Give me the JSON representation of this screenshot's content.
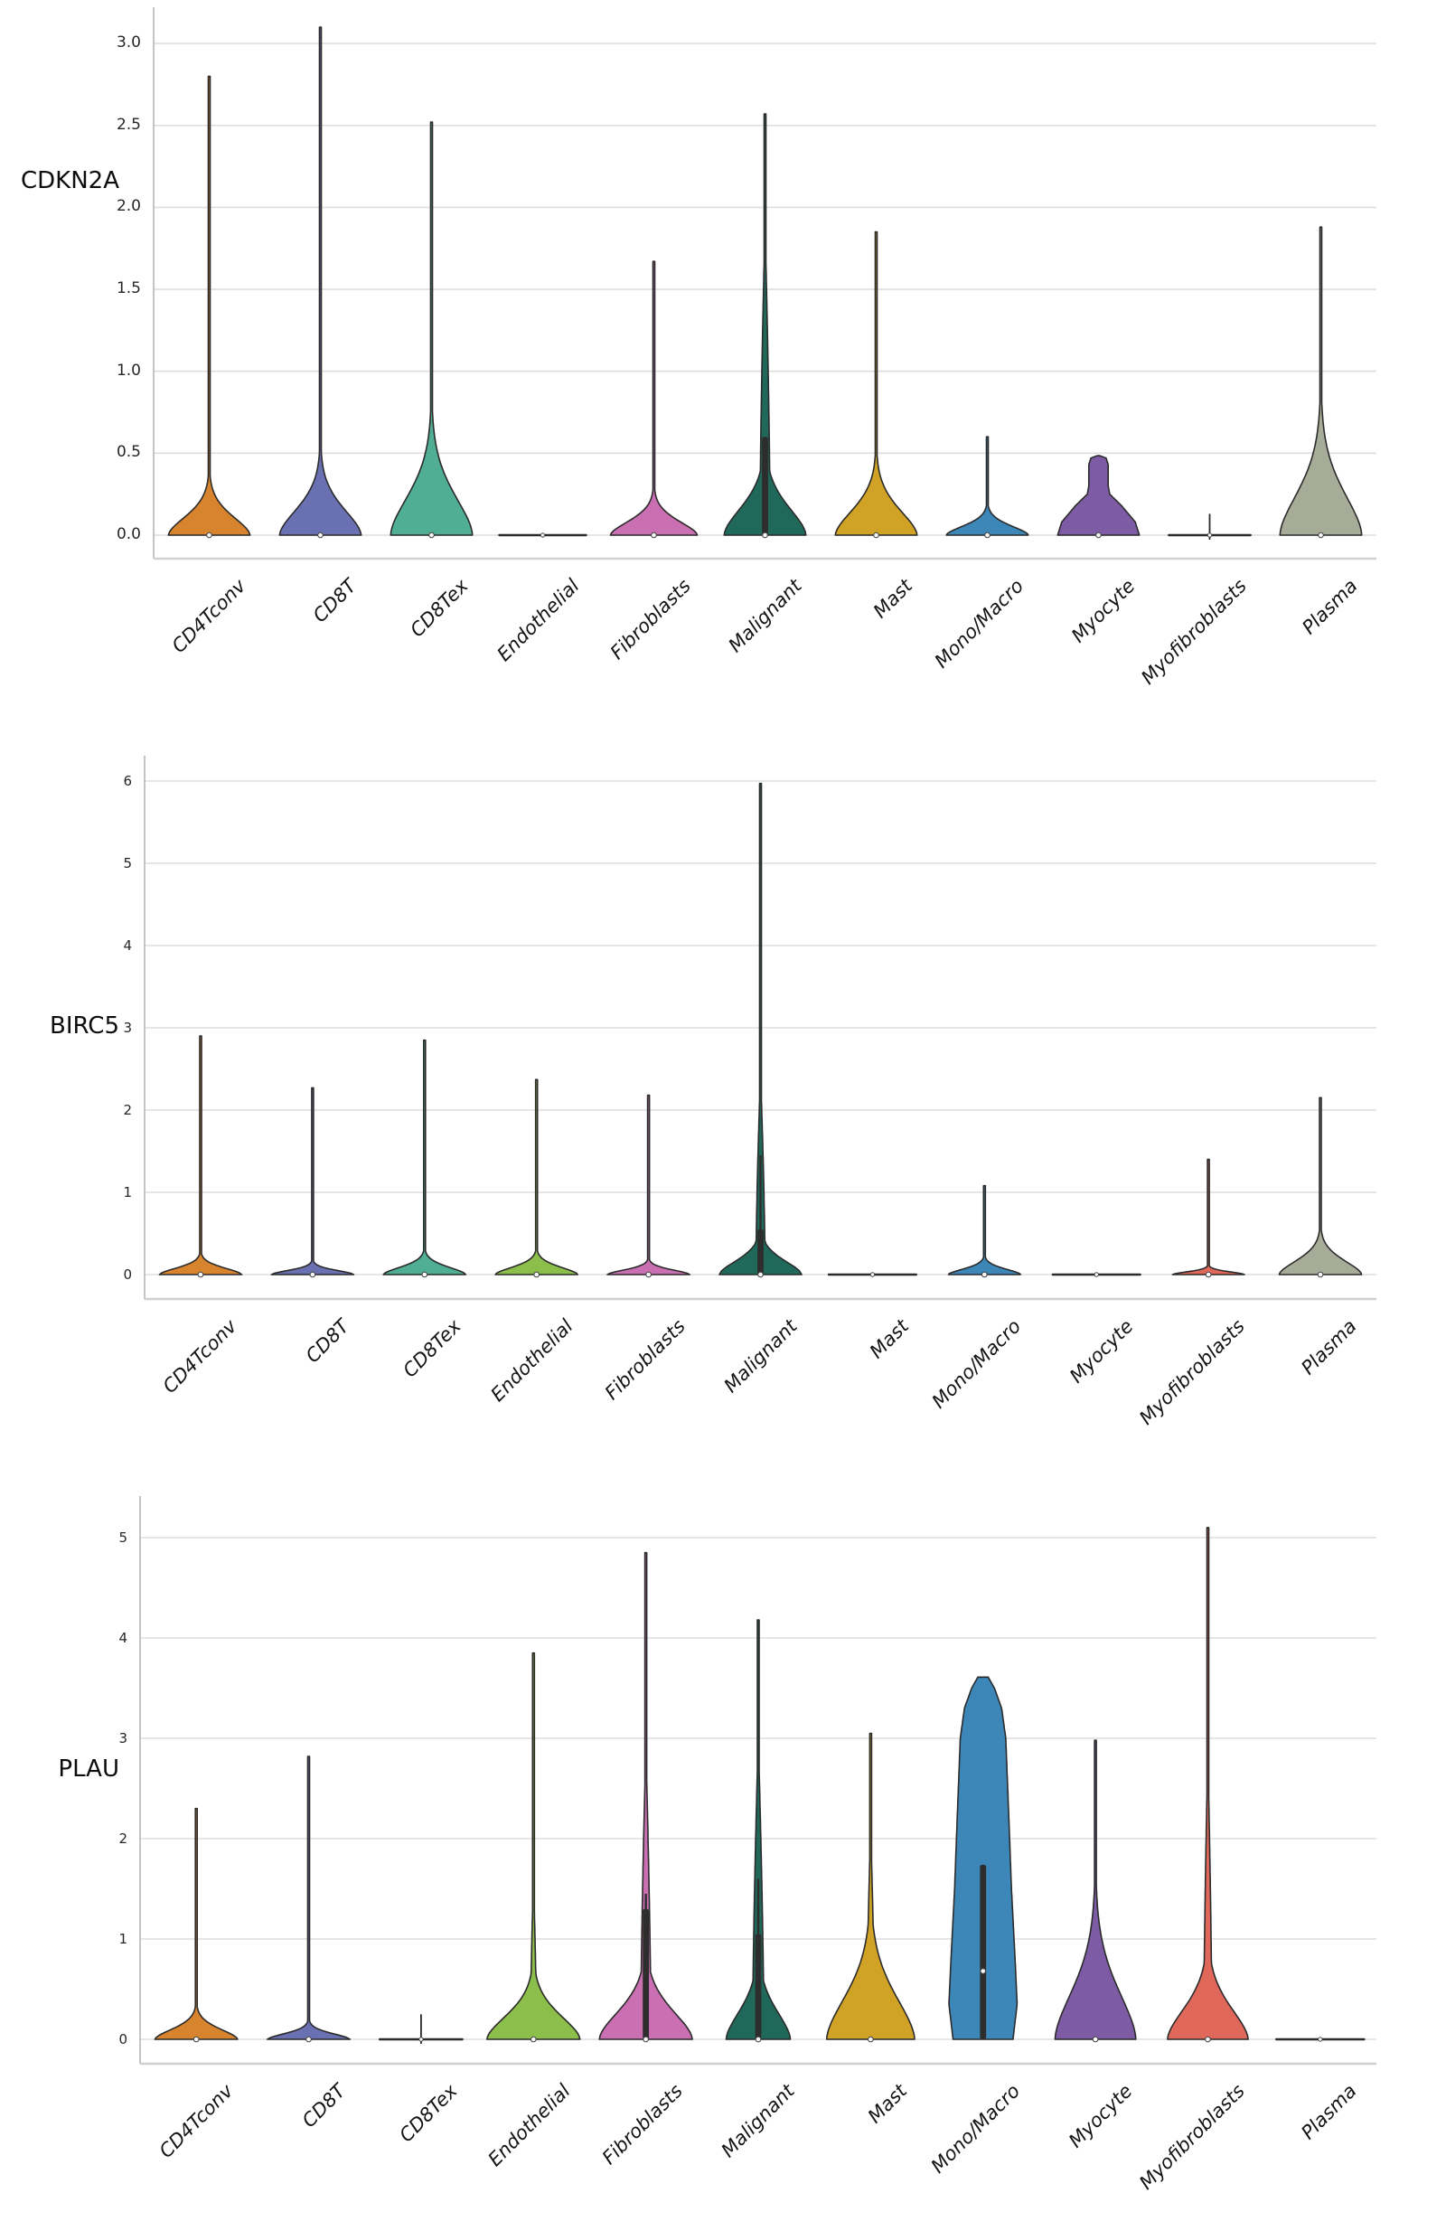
{
  "figure_title": "",
  "chart_data": [
    {
      "gene": "CDKN2A",
      "type": "violin",
      "ylim": [
        -0.15,
        3.22
      ],
      "grid": true,
      "yticks": [
        0.0,
        0.5,
        1.0,
        1.5,
        2.0,
        2.5,
        3.0
      ],
      "ytick_labels": [
        "0.0",
        "0.5",
        "1.0",
        "1.5",
        "2.0",
        "2.5",
        "3.0"
      ],
      "categories": [
        "CD4Tconv",
        "CD8T",
        "CD8Tex",
        "Endothelial",
        "Fibroblasts",
        "Malignant",
        "Mast",
        "Mono/Macro",
        "Myocyte",
        "Myofibroblasts",
        "Plasma"
      ],
      "violins": [
        {
          "category": "CD4Tconv",
          "color": "#D8842F",
          "shape": "bell",
          "hw": 0.8,
          "body": 0.2,
          "max": 2.8,
          "median": 0
        },
        {
          "category": "CD8T",
          "color": "#6A71B2",
          "shape": "bell",
          "hw": 0.8,
          "body": 0.28,
          "max": 3.1,
          "median": 0
        },
        {
          "category": "CD8Tex",
          "color": "#4FAE94",
          "shape": "bell",
          "hw": 0.8,
          "body": 0.42,
          "max": 2.52,
          "median": 0
        },
        {
          "category": "Endothelial",
          "color": "#8CBE4B",
          "shape": "flat",
          "hw": 0.85,
          "max": 0.02,
          "median": 0
        },
        {
          "category": "Fibroblasts",
          "color": "#C96FB2",
          "shape": "bell",
          "hw": 0.85,
          "body": 0.15,
          "max": 1.67,
          "median": 0
        },
        {
          "category": "Malignant",
          "color": "#20695A",
          "shape": "bell",
          "hw": 0.8,
          "body": 0.3,
          "neck_h": 1.9,
          "neck_w": 0.1,
          "max": 2.57,
          "box": [
            0,
            0.6
          ],
          "median": 0
        },
        {
          "category": "Mast",
          "color": "#D0A326",
          "shape": "bell",
          "hw": 0.8,
          "body": 0.27,
          "max": 1.85,
          "median": 0
        },
        {
          "category": "Mono/Macro",
          "color": "#3D87B8",
          "shape": "bell",
          "hw": 0.8,
          "body": 0.1,
          "max": 0.6,
          "median": 0
        },
        {
          "category": "Myocyte",
          "color": "#7D5CA5",
          "shape": "profile",
          "profile": [
            [
              0,
              0.8
            ],
            [
              0.08,
              0.72
            ],
            [
              0.18,
              0.45
            ],
            [
              0.25,
              0.22
            ],
            [
              0.3,
              0.19
            ],
            [
              0.43,
              0.19
            ],
            [
              0.47,
              0.15
            ],
            [
              0.485,
              0.02
            ]
          ],
          "max": 0.485,
          "median": 0
        },
        {
          "category": "Myofibroblasts",
          "color": "#E0685B",
          "shape": "flat",
          "hw": 0.8,
          "max": 0.13,
          "median": 0
        },
        {
          "category": "Plasma",
          "color": "#A7AC98",
          "shape": "bell",
          "hw": 0.8,
          "body": 0.45,
          "max": 1.88,
          "median": 0
        }
      ]
    },
    {
      "gene": "BIRC5",
      "type": "violin",
      "ylim": [
        -0.3,
        6.3
      ],
      "grid": true,
      "yticks": [
        0,
        1,
        2,
        3,
        4,
        5,
        6
      ],
      "ytick_labels": [
        "0",
        "1",
        "2",
        "3",
        "4",
        "5",
        "6"
      ],
      "categories": [
        "CD4Tconv",
        "CD8T",
        "CD8Tex",
        "Endothelial",
        "Fibroblasts",
        "Malignant",
        "Mast",
        "Mono/Macro",
        "Myocyte",
        "Myofibroblasts",
        "Plasma"
      ],
      "violins": [
        {
          "category": "CD4Tconv",
          "color": "#D8842F",
          "shape": "bell",
          "hw": 0.8,
          "body": 0.14,
          "max": 2.9,
          "median": 0
        },
        {
          "category": "CD8T",
          "color": "#6A71B2",
          "shape": "bell",
          "hw": 0.8,
          "body": 0.09,
          "max": 2.27,
          "median": 0
        },
        {
          "category": "CD8Tex",
          "color": "#4FAE94",
          "shape": "bell",
          "hw": 0.8,
          "body": 0.16,
          "max": 2.85,
          "median": 0
        },
        {
          "category": "Endothelial",
          "color": "#8CBE4B",
          "shape": "bell",
          "hw": 0.8,
          "body": 0.16,
          "max": 2.37,
          "median": 0
        },
        {
          "category": "Fibroblasts",
          "color": "#C96FB2",
          "shape": "bell",
          "hw": 0.8,
          "body": 0.1,
          "max": 2.18,
          "median": 0
        },
        {
          "category": "Malignant",
          "color": "#20695A",
          "shape": "bell",
          "hw": 0.8,
          "body": 0.3,
          "neck_h": 2.45,
          "neck_w": 0.09,
          "max": 5.97,
          "box": [
            0,
            0.55
          ],
          "whisker": 1.45,
          "median": 0
        },
        {
          "category": "Mast",
          "color": "#D0A326",
          "shape": "flat",
          "hw": 0.85,
          "max": 0.03,
          "median": 0
        },
        {
          "category": "Mono/Macro",
          "color": "#3D87B8",
          "shape": "bell",
          "hw": 0.7,
          "body": 0.12,
          "max": 1.08,
          "median": 0
        },
        {
          "category": "Myocyte",
          "color": "#7D5CA5",
          "shape": "flat",
          "hw": 0.85,
          "max": 0.03,
          "median": 0
        },
        {
          "category": "Myofibroblasts",
          "color": "#E0685B",
          "shape": "bell",
          "hw": 0.7,
          "body": 0.06,
          "max": 1.4,
          "median": 0
        },
        {
          "category": "Plasma",
          "color": "#A7AC98",
          "shape": "bell",
          "hw": 0.8,
          "body": 0.3,
          "max": 2.15,
          "median": 0
        }
      ]
    },
    {
      "gene": "PLAU",
      "type": "violin",
      "ylim": [
        -0.24,
        5.42
      ],
      "grid": true,
      "yticks": [
        0,
        1,
        2,
        3,
        4,
        5
      ],
      "ytick_labels": [
        "0",
        "1",
        "2",
        "3",
        "4",
        "5"
      ],
      "categories": [
        "CD4Tconv",
        "CD8T",
        "CD8Tex",
        "Endothelial",
        "Fibroblasts",
        "Malignant",
        "Mast",
        "Mono/Macro",
        "Myocyte",
        "Myofibroblasts",
        "Plasma"
      ],
      "violins": [
        {
          "category": "CD4Tconv",
          "color": "#D8842F",
          "shape": "bell",
          "hw": 0.8,
          "body": 0.18,
          "max": 2.3,
          "median": 0
        },
        {
          "category": "CD8T",
          "color": "#6A71B2",
          "shape": "bell",
          "hw": 0.8,
          "body": 0.1,
          "max": 2.82,
          "median": 0
        },
        {
          "category": "CD8Tex",
          "color": "#4FAE94",
          "shape": "flat",
          "hw": 0.8,
          "max": 0.25,
          "median": 0
        },
        {
          "category": "Endothelial",
          "color": "#8CBE4B",
          "shape": "bell",
          "hw": 0.9,
          "body": 0.42,
          "neck_h": 1.6,
          "neck_w": 0.06,
          "max": 3.85,
          "median": 0
        },
        {
          "category": "Fibroblasts",
          "color": "#C96FB2",
          "shape": "bell",
          "hw": 0.9,
          "body": 0.5,
          "neck_h": 2.9,
          "neck_w": 0.1,
          "max": 4.85,
          "box": [
            0,
            1.3
          ],
          "whisker": 1.45,
          "median": 0
        },
        {
          "category": "Malignant",
          "color": "#20695A",
          "shape": "bell",
          "hw": 0.62,
          "body": 0.5,
          "neck_h": 3.0,
          "neck_w": 0.11,
          "max": 4.18,
          "box": [
            0,
            1.05
          ],
          "whisker": 1.6,
          "median": 0
        },
        {
          "category": "Mast",
          "color": "#D0A326",
          "shape": "bell",
          "hw": 0.85,
          "body": 0.75,
          "neck_h": 2.1,
          "neck_w": 0.08,
          "max": 3.05,
          "median": 0
        },
        {
          "category": "Mono/Macro",
          "color": "#3D87B8",
          "shape": "profile",
          "profile": [
            [
              0,
              0.58
            ],
            [
              0.35,
              0.66
            ],
            [
              0.8,
              0.62
            ],
            [
              1.5,
              0.55
            ],
            [
              2.2,
              0.5
            ],
            [
              3.0,
              0.44
            ],
            [
              3.3,
              0.36
            ],
            [
              3.5,
              0.22
            ],
            [
              3.61,
              0.1
            ],
            [
              3.64,
              0.02
            ]
          ],
          "max": 3.61,
          "box": [
            0,
            1.74
          ],
          "median": 0.68
        },
        {
          "category": "Myocyte",
          "color": "#7D5CA5",
          "shape": "bell",
          "hw": 0.78,
          "body": 0.85,
          "neck_h": 1.5,
          "neck_w": 0.07,
          "max": 2.98,
          "median": 0
        },
        {
          "category": "Myofibroblasts",
          "color": "#E0685B",
          "shape": "bell",
          "hw": 0.78,
          "body": 0.55,
          "neck_h": 2.85,
          "neck_w": 0.08,
          "max": 5.1,
          "median": 0
        },
        {
          "category": "Plasma",
          "color": "#A7AC98",
          "shape": "flat",
          "hw": 0.85,
          "max": 0.02,
          "median": 0
        }
      ]
    }
  ],
  "style_colors": {
    "gridline": "#dedede",
    "left_spine": "#b5b5b5",
    "bottom_spine": "#d0d0d0",
    "violin_outline": "#2b2b2b",
    "box_fill": "#2d2d2d",
    "median_dot": "#f8f8f8",
    "tick_text": "#262626",
    "label_text": "#141414"
  }
}
